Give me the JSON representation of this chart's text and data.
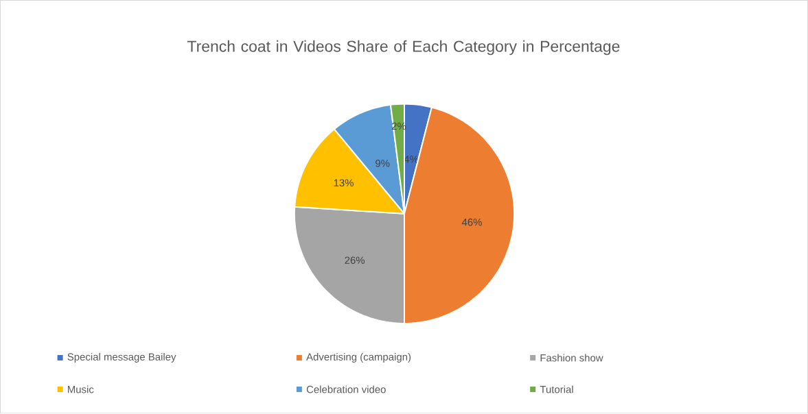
{
  "chart_data": {
    "type": "pie",
    "title": "Trench coat in Videos Share of Each Category in Percentage",
    "categories": [
      "Special message Bailey",
      "Advertising (campaign)",
      "Fashion show",
      "Music",
      "Celebration video",
      "Tutorial"
    ],
    "values": [
      4,
      46,
      26,
      13,
      9,
      2
    ],
    "value_labels": [
      "4%",
      "46%",
      "26%",
      "13%",
      "9%",
      "2%"
    ],
    "colors": [
      "#4472c4",
      "#ed7d31",
      "#a5a5a5",
      "#ffc000",
      "#5b9bd5",
      "#70ad47"
    ],
    "legend": "bottom"
  }
}
